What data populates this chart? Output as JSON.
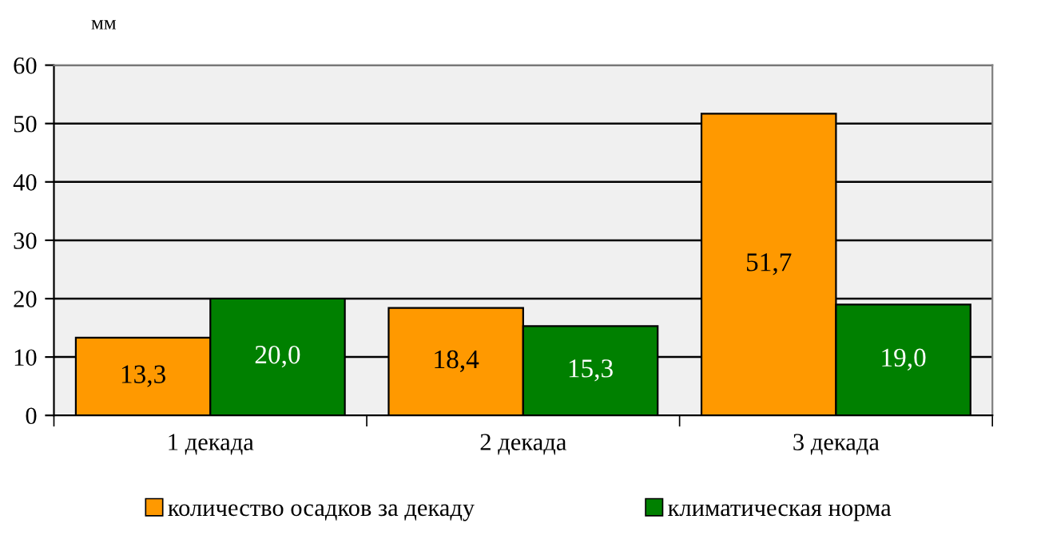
{
  "chart_data": {
    "type": "bar",
    "ylabel": "мм",
    "categories": [
      "1 декада",
      "2 декада",
      "3 декада"
    ],
    "series": [
      {
        "name": "количество осадков за декаду",
        "color": "#ff9900",
        "values": [
          13.3,
          18.4,
          51.7
        ],
        "value_labels": [
          "13,3",
          "18,4",
          "51,7"
        ]
      },
      {
        "name": "климатическая норма",
        "color": "#008000",
        "values": [
          20.0,
          15.3,
          19.0
        ],
        "value_labels": [
          "20,0",
          "15,3",
          "19,0"
        ]
      }
    ],
    "ylim": [
      0,
      60
    ],
    "yticks": [
      0,
      10,
      20,
      30,
      40,
      50,
      60
    ],
    "grid": "y",
    "legend": "bottom"
  }
}
